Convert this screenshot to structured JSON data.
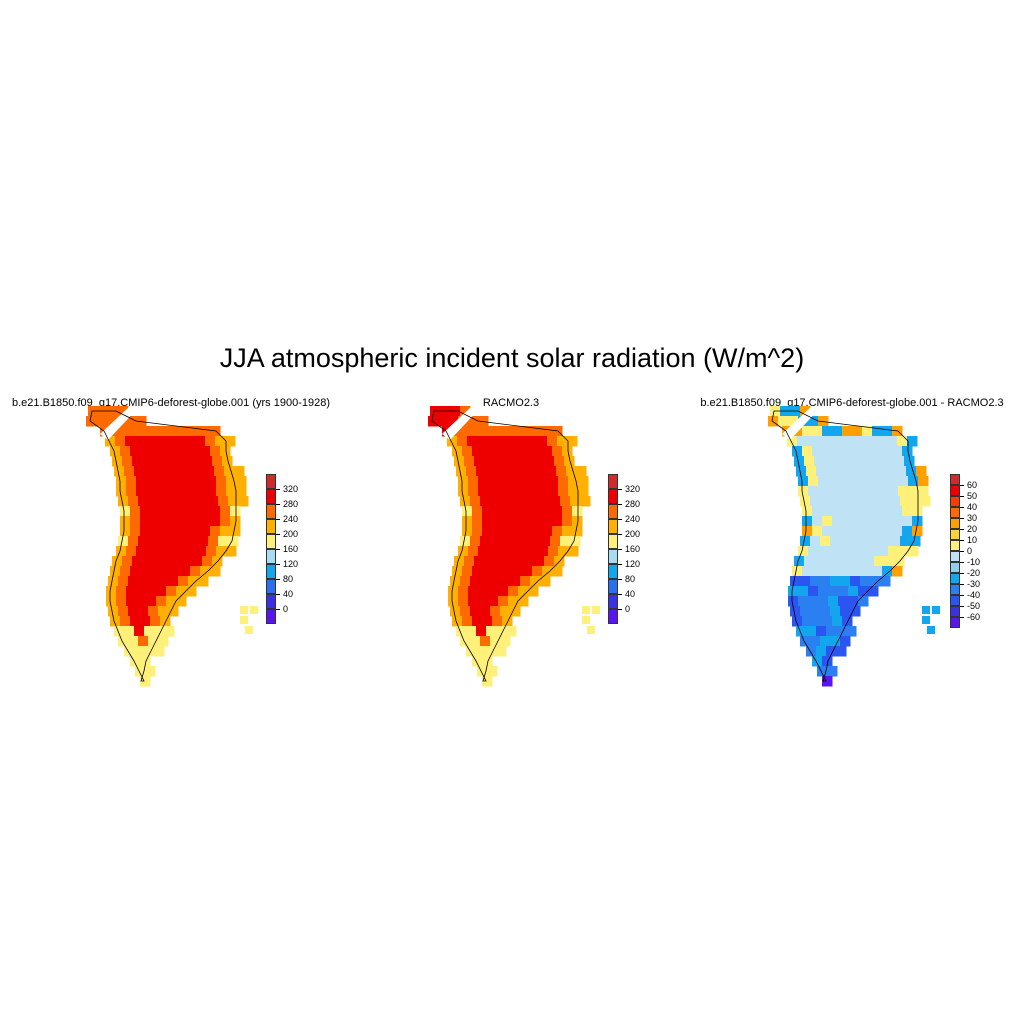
{
  "figure": {
    "title": "JJA atmospheric incident solar radiation (W/m^2)"
  },
  "panels": [
    {
      "title": "b.e21.B1850.f09_g17.CMIP6-deforest-globe.001 (yrs 1900-1928)",
      "field": "model",
      "colorbar": {
        "labels": [
          "320",
          "280",
          "240",
          "200",
          "160",
          "120",
          "80",
          "40",
          "0"
        ],
        "colors": [
          "#d22a2a",
          "#ee0000",
          "#ff6a00",
          "#ffb000",
          "#fff07a",
          "#a8dcf2",
          "#12a6ef",
          "#2a6ff0",
          "#3a30e6",
          "#5a14f0"
        ]
      }
    },
    {
      "title": "RACMO2.3",
      "field": "obs",
      "colorbar": {
        "labels": [
          "320",
          "280",
          "240",
          "200",
          "160",
          "120",
          "80",
          "40",
          "0"
        ],
        "colors": [
          "#d22a2a",
          "#ee0000",
          "#ff6a00",
          "#ffb000",
          "#fff07a",
          "#a8dcf2",
          "#12a6ef",
          "#2a6ff0",
          "#3a30e6",
          "#5a14f0"
        ]
      }
    },
    {
      "title": "b.e21.B1850.f09_g17.CMIP6-deforest-globe.001 - RACMO2.3",
      "field": "diff",
      "colorbar": {
        "labels": [
          "60",
          "50",
          "40",
          "30",
          "20",
          "10",
          "0",
          "-10",
          "-20",
          "-30",
          "-40",
          "-50",
          "-60"
        ],
        "colors": [
          "#d22a2a",
          "#ee0000",
          "#ff3a00",
          "#ff6a00",
          "#ffa000",
          "#ffd040",
          "#fff07a",
          "#bfe3f5",
          "#8ecff2",
          "#12a6ef",
          "#2a80f0",
          "#2a55f0",
          "#3a30e6",
          "#5a14f0"
        ]
      }
    }
  ]
}
